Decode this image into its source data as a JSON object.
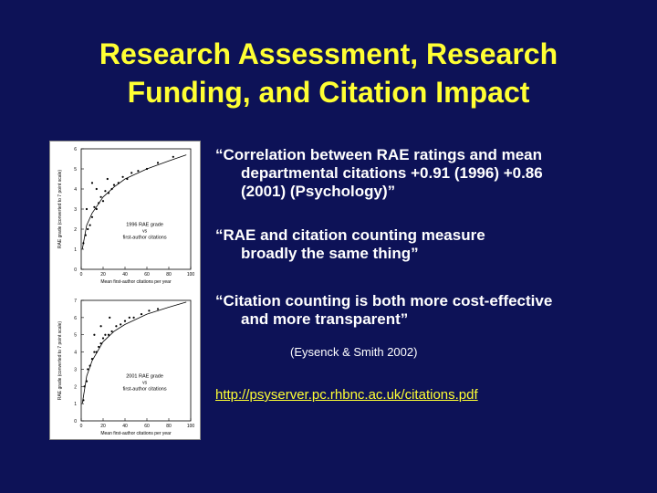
{
  "slide": {
    "title_line1": "Research Assessment, Research",
    "title_line2": "Funding, and Citation Impact"
  },
  "bullets": [
    {
      "line1": "“Correlation between RAE ratings and mean",
      "line2": "departmental citations +0.91 (1996) +0.86",
      "line3": "(2001) (Psychology)”"
    },
    {
      "line1": "“RAE and citation counting measure",
      "line2": "broadly the same thing”"
    },
    {
      "line1": "“Citation counting is both more cost-effective",
      "line2": "and more transparent”"
    }
  ],
  "citation": "(Eysenck & Smith 2002)",
  "link": "http://psyserver.pc.rhbnc.ac.uk/citations.pdf",
  "colors": {
    "background": "#0d1257",
    "title": "#ffff33",
    "text": "#ffffff"
  },
  "chart_data": [
    {
      "type": "scatter",
      "ylabel": "RAE grade (converted to 7 point scale)",
      "xlabel": "Mean first-author citations per year",
      "annotation_line1": "1996 RAE grade",
      "annotation_line2": "vs",
      "annotation_line3": "first-author citations",
      "xlim": [
        0,
        100
      ],
      "ylim": [
        0,
        6
      ],
      "x_ticks": [
        "0",
        "20",
        "40",
        "60",
        "80",
        "100"
      ],
      "y_ticks": [
        "0",
        "1",
        "2",
        "3",
        "4",
        "5",
        "6"
      ],
      "points": [
        [
          2,
          1.3
        ],
        [
          4,
          1.7
        ],
        [
          6,
          2.0
        ],
        [
          8,
          2.2
        ],
        [
          5,
          3.0
        ],
        [
          10,
          2.6
        ],
        [
          12,
          3.1
        ],
        [
          14,
          3.0
        ],
        [
          16,
          3.3
        ],
        [
          18,
          3.6
        ],
        [
          20,
          3.4
        ],
        [
          22,
          3.9
        ],
        [
          25,
          3.8
        ],
        [
          28,
          4.0
        ],
        [
          30,
          4.2
        ],
        [
          34,
          4.3
        ],
        [
          38,
          4.6
        ],
        [
          42,
          4.5
        ],
        [
          46,
          4.8
        ],
        [
          52,
          4.9
        ],
        [
          60,
          5.0
        ],
        [
          70,
          5.3
        ],
        [
          84,
          5.6
        ],
        [
          14,
          4.0
        ],
        [
          24,
          4.5
        ],
        [
          10,
          4.3
        ]
      ],
      "curve": [
        [
          1,
          1.0
        ],
        [
          5,
          2.2
        ],
        [
          10,
          2.8
        ],
        [
          20,
          3.6
        ],
        [
          30,
          4.1
        ],
        [
          40,
          4.5
        ],
        [
          60,
          5.0
        ],
        [
          80,
          5.4
        ],
        [
          96,
          5.7
        ]
      ]
    },
    {
      "type": "scatter",
      "ylabel": "RAE grade (converted to 7 point scale)",
      "xlabel": "Mean first-author citations per year",
      "annotation_line1": "2001 RAE grade",
      "annotation_line2": "vs",
      "annotation_line3": "first-author citations",
      "xlim": [
        0,
        100
      ],
      "ylim": [
        0,
        7
      ],
      "x_ticks": [
        "0",
        "20",
        "40",
        "60",
        "80",
        "100"
      ],
      "y_ticks": [
        "0",
        "1",
        "2",
        "3",
        "4",
        "5",
        "6",
        "7"
      ],
      "points": [
        [
          2,
          1.2
        ],
        [
          3,
          2.0
        ],
        [
          5,
          2.3
        ],
        [
          6,
          3.0
        ],
        [
          8,
          3.2
        ],
        [
          10,
          3.6
        ],
        [
          12,
          4.0
        ],
        [
          14,
          4.0
        ],
        [
          16,
          4.3
        ],
        [
          18,
          4.5
        ],
        [
          20,
          4.8
        ],
        [
          22,
          5.0
        ],
        [
          25,
          5.0
        ],
        [
          28,
          5.2
        ],
        [
          32,
          5.5
        ],
        [
          36,
          5.6
        ],
        [
          40,
          5.8
        ],
        [
          44,
          6.0
        ],
        [
          48,
          6.0
        ],
        [
          55,
          6.2
        ],
        [
          62,
          6.4
        ],
        [
          70,
          6.5
        ],
        [
          12,
          5.0
        ],
        [
          18,
          5.5
        ],
        [
          26,
          6.0
        ]
      ],
      "curve": [
        [
          1,
          1.0
        ],
        [
          5,
          2.6
        ],
        [
          10,
          3.5
        ],
        [
          20,
          4.6
        ],
        [
          30,
          5.2
        ],
        [
          40,
          5.6
        ],
        [
          60,
          6.2
        ],
        [
          80,
          6.6
        ],
        [
          96,
          6.9
        ]
      ]
    }
  ]
}
